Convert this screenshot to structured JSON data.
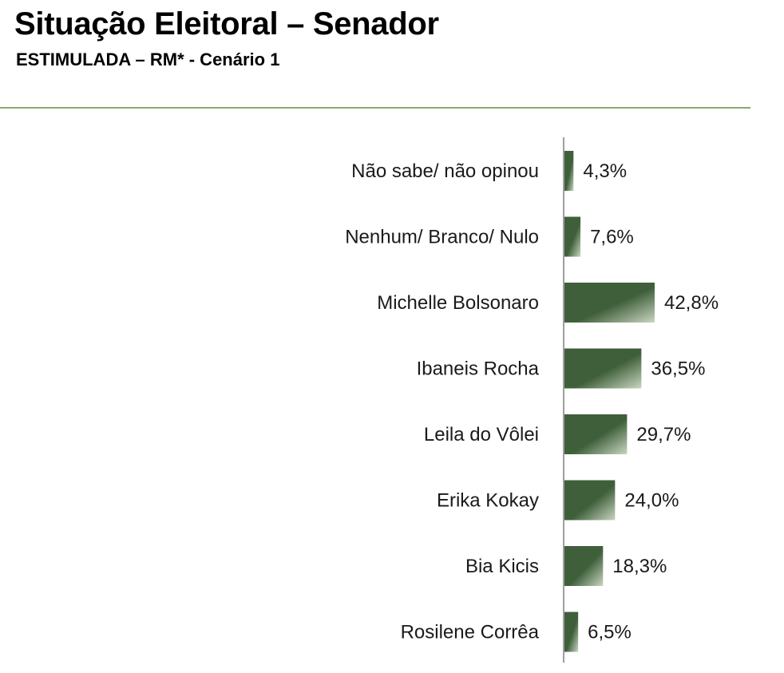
{
  "header": {
    "title": "Situação Eleitoral – Senador",
    "subtitle": "ESTIMULADA – RM* - Cenário 1"
  },
  "colors": {
    "bar_dark": "#3f5f3a",
    "bar_light": "#c9d6c1",
    "axis": "#7f7f7f",
    "rule": "#8aa86e"
  },
  "chart_data": {
    "type": "bar",
    "orientation": "horizontal",
    "categories": [
      "Não sabe/ não opinou",
      "Nenhum/ Branco/ Nulo",
      "Michelle Bolsonaro",
      "Ibaneis Rocha",
      "Leila do Vôlei",
      "Erika Kokay",
      "Bia Kicis",
      "Rosilene Corrêa"
    ],
    "values": [
      4.3,
      7.6,
      42.8,
      36.5,
      29.7,
      24.0,
      18.3,
      6.5
    ],
    "value_labels": [
      "4,3%",
      "7,6%",
      "42,8%",
      "36,5%",
      "29,7%",
      "24,0%",
      "18,3%",
      "6,5%"
    ],
    "unit": "%",
    "xlim": [
      0,
      45
    ],
    "grid": false,
    "legend": "none"
  }
}
